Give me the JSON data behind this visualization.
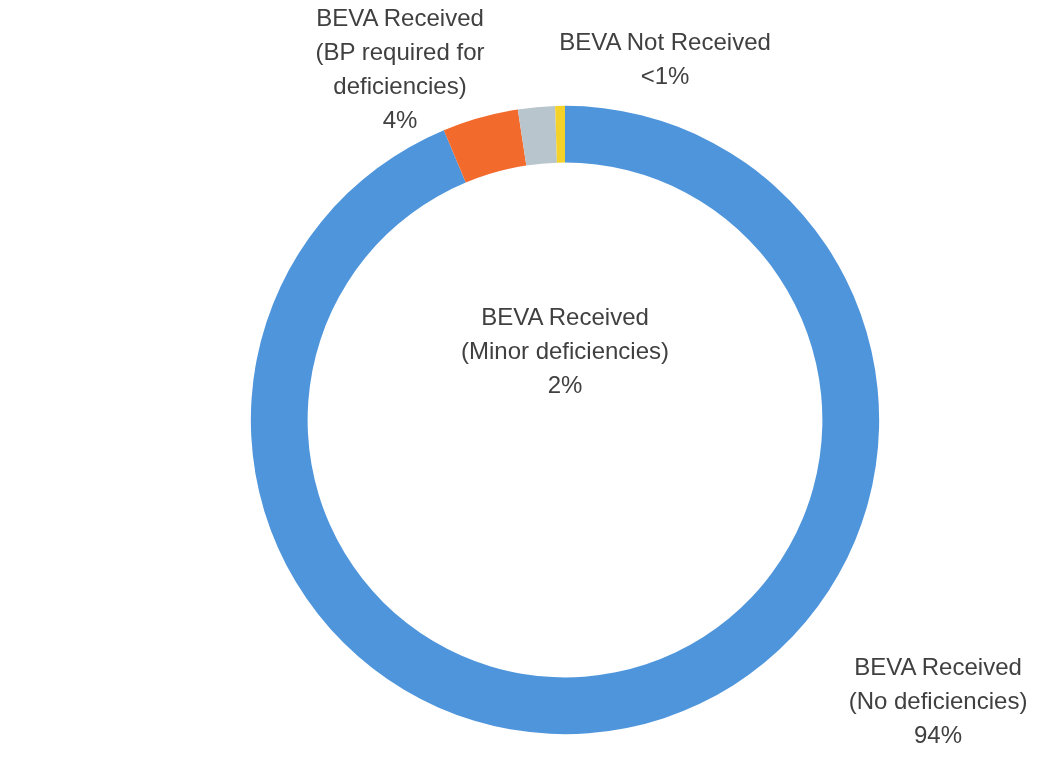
{
  "chart_data": {
    "type": "donut",
    "categories": [
      "BEVA Received\n(No deficiencies)",
      "BEVA Received\n(BP required for\ndeficiencies)",
      "BEVA Received\n(Minor deficiencies)",
      "BEVA Not Received"
    ],
    "values": [
      93.7,
      3.9,
      1.9,
      0.5
    ],
    "value_labels": [
      "94%",
      "4%",
      "2%",
      "<1%"
    ],
    "colors": [
      "#4f95dc",
      "#f26a2c",
      "#b9c5cd",
      "#f4d22a"
    ],
    "legend": false
  }
}
